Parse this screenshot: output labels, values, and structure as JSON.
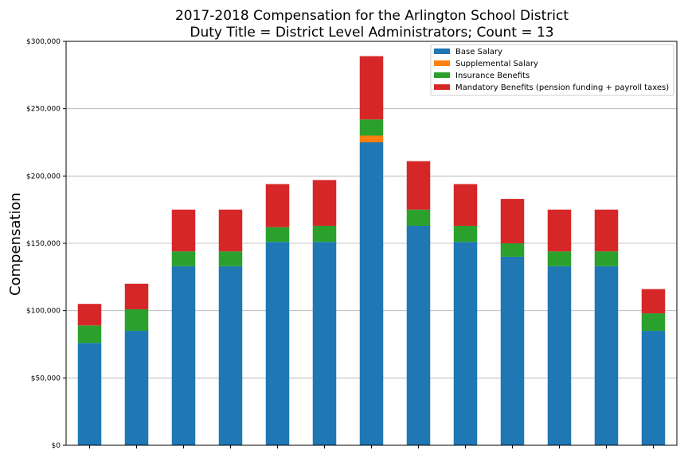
{
  "chart_data": {
    "type": "bar",
    "stacked": true,
    "title": "2017-2018 Compensation for the Arlington School District",
    "subtitle": "Duty Title = District Level Administrators; Count = 13",
    "xlabel": "",
    "ylabel": "Compensation",
    "ylim": [
      0,
      300000
    ],
    "yticks": [
      0,
      50000,
      100000,
      150000,
      200000,
      250000,
      300000
    ],
    "ytick_labels": [
      "$0",
      "$50,000",
      "$100,000",
      "$150,000",
      "$200,000",
      "$250,000",
      "$300,000"
    ],
    "grid": true,
    "legend_position": "top-right",
    "categories": [
      "",
      "",
      "",
      "",
      "",
      "",
      "",
      "",
      "",
      "",
      "",
      "",
      ""
    ],
    "series": [
      {
        "name": "Base Salary",
        "color": "#1f77b4",
        "values": [
          76000,
          85000,
          133000,
          133000,
          151000,
          151000,
          225000,
          163000,
          151000,
          140000,
          133000,
          133000,
          85000
        ]
      },
      {
        "name": "Supplemental Salary",
        "color": "#ff7f0e",
        "values": [
          0,
          0,
          0,
          0,
          0,
          0,
          5000,
          0,
          0,
          0,
          0,
          0,
          0
        ]
      },
      {
        "name": "Insurance Benefits",
        "color": "#2ca02c",
        "values": [
          13000,
          16000,
          11000,
          11000,
          11000,
          12000,
          12000,
          12000,
          12000,
          10000,
          11000,
          11000,
          13000
        ]
      },
      {
        "name": "Mandatory Benefits (pension funding + payroll taxes)",
        "color": "#d62728",
        "values": [
          16000,
          19000,
          31000,
          31000,
          32000,
          34000,
          47000,
          36000,
          31000,
          33000,
          31000,
          31000,
          18000
        ]
      }
    ]
  }
}
